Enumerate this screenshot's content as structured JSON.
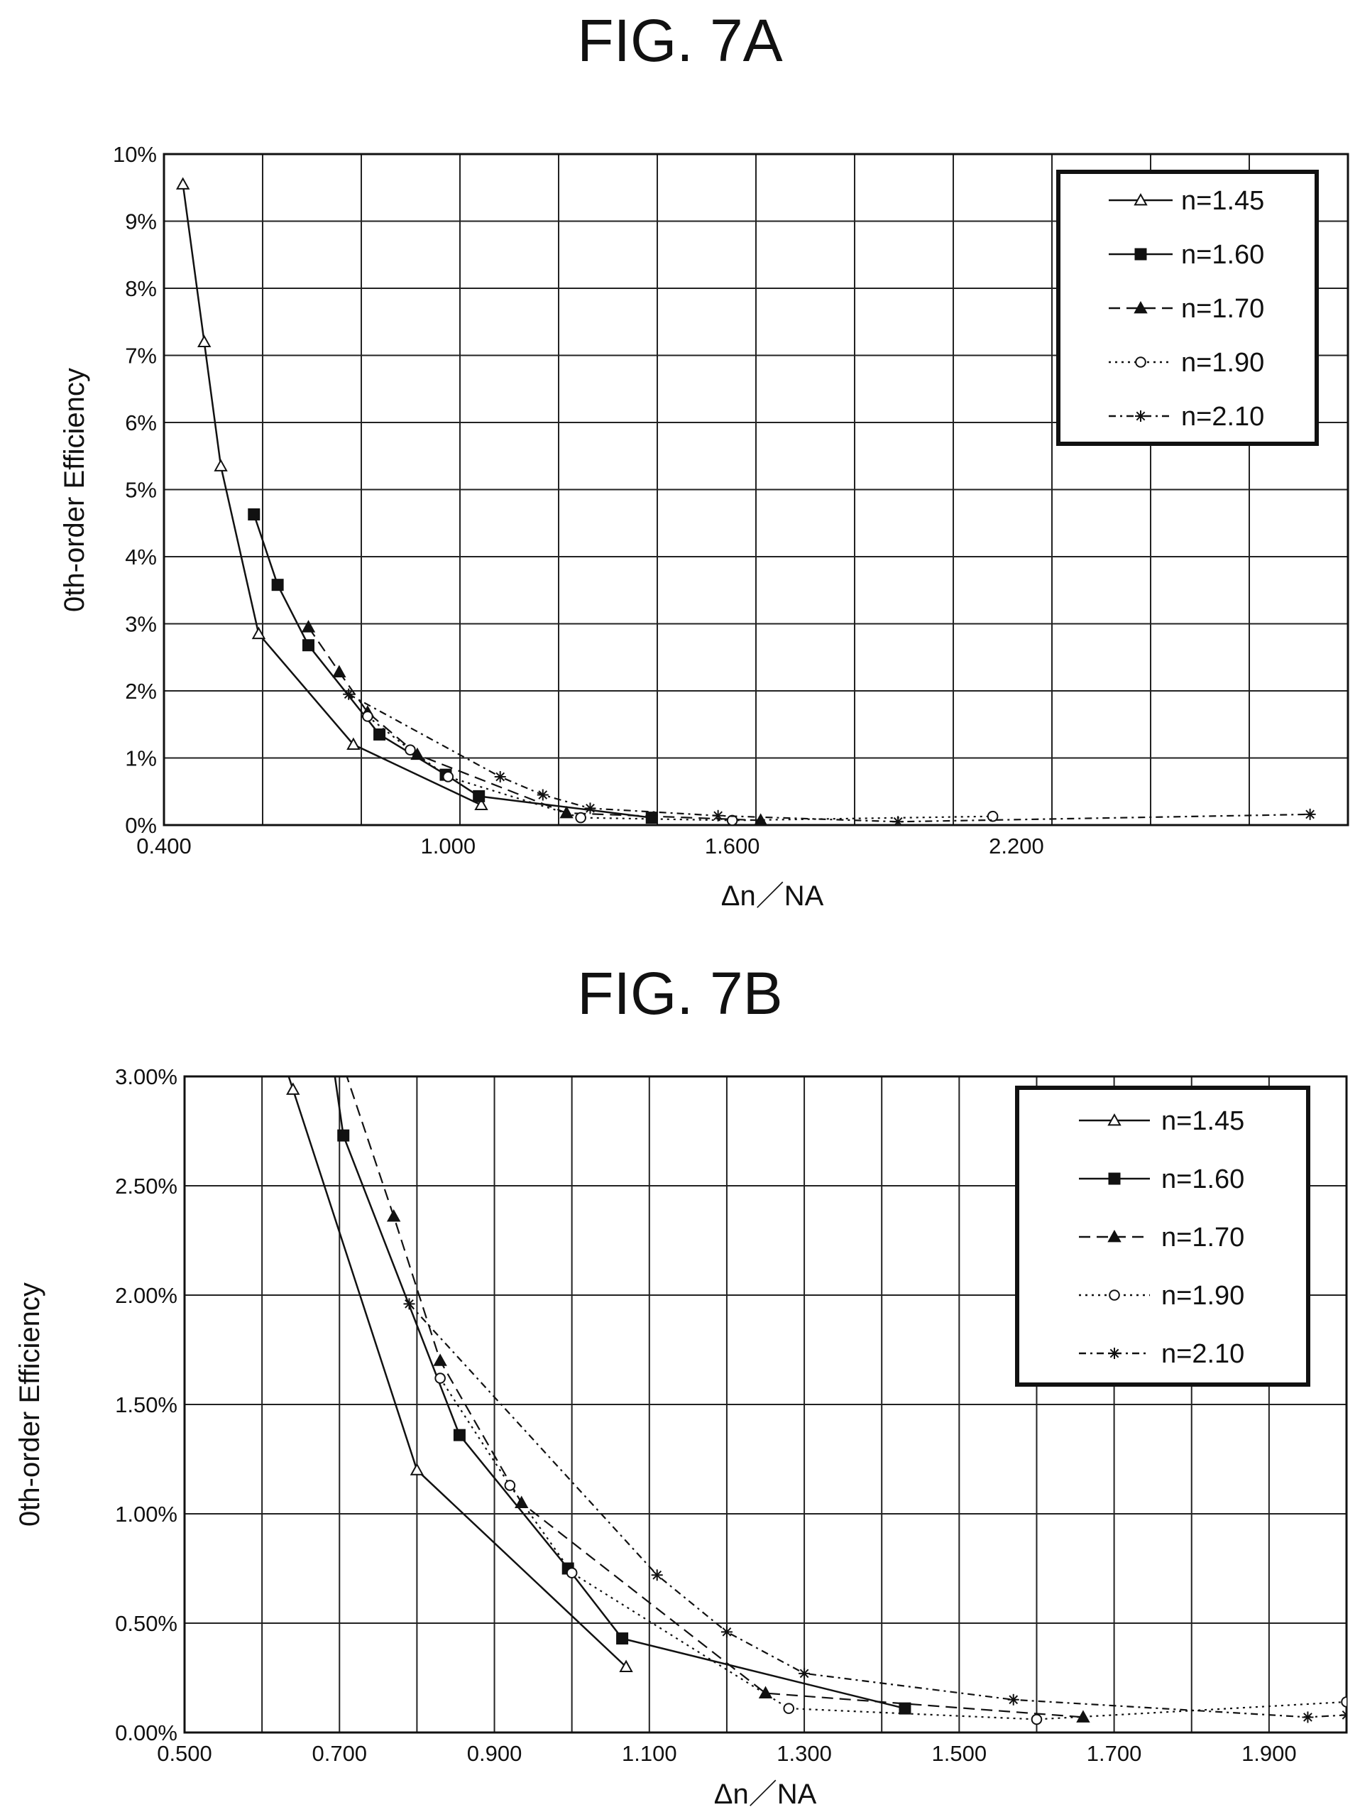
{
  "figures": [
    {
      "title": "FIG. 7A",
      "chart_data": {
        "type": "line",
        "title": "FIG. 7A",
        "xlabel": "Δn／NA",
        "ylabel": "0th-order Efficiency",
        "xlim": [
          0.4,
          2.9
        ],
        "ylim": [
          0,
          0.1
        ],
        "x_ticks": [
          0.4,
          1.0,
          1.6,
          2.2
        ],
        "x_tick_labels": [
          "0.400",
          "1.000",
          "1.600",
          "2.200"
        ],
        "y_ticks": [
          0,
          0.01,
          0.02,
          0.03,
          0.04,
          0.05,
          0.06,
          0.07,
          0.08,
          0.09,
          0.1
        ],
        "y_tick_labels": [
          "0%",
          "1%",
          "2%",
          "3%",
          "4%",
          "5%",
          "6%",
          "7%",
          "8%",
          "9%",
          "10%"
        ],
        "grid": true,
        "legend_position": "top-right",
        "series": [
          {
            "name": "n=1.45",
            "marker": "triangle-open",
            "dash": "solid",
            "points": [
              [
                0.44,
                0.0955
              ],
              [
                0.485,
                0.072
              ],
              [
                0.52,
                0.0535
              ],
              [
                0.6,
                0.0285
              ],
              [
                0.8,
                0.012
              ],
              [
                1.07,
                0.003
              ]
            ]
          },
          {
            "name": "n=1.60",
            "marker": "square",
            "dash": "solid",
            "points": [
              [
                0.59,
                0.0463
              ],
              [
                0.64,
                0.0358
              ],
              [
                0.705,
                0.0268
              ],
              [
                0.855,
                0.0135
              ],
              [
                0.995,
                0.0075
              ],
              [
                1.065,
                0.0043
              ],
              [
                1.43,
                0.0011
              ]
            ]
          },
          {
            "name": "n=1.70",
            "marker": "triangle",
            "dash": "dashed",
            "points": [
              [
                0.705,
                0.0295
              ],
              [
                0.77,
                0.0228
              ],
              [
                0.83,
                0.0168
              ],
              [
                0.935,
                0.0105
              ],
              [
                1.25,
                0.0018
              ],
              [
                1.66,
                0.0007
              ]
            ]
          },
          {
            "name": "n=1.90",
            "marker": "circle-open",
            "dash": "dotted",
            "points": [
              [
                0.83,
                0.0162
              ],
              [
                0.92,
                0.0112
              ],
              [
                1.0,
                0.0072
              ],
              [
                1.28,
                0.0011
              ],
              [
                1.6,
                0.0007
              ],
              [
                2.15,
                0.0013
              ]
            ]
          },
          {
            "name": "n=2.10",
            "marker": "asterisk",
            "dash": "dashdot",
            "points": [
              [
                0.79,
                0.0195
              ],
              [
                1.11,
                0.0072
              ],
              [
                1.2,
                0.0045
              ],
              [
                1.3,
                0.0025
              ],
              [
                1.57,
                0.0014
              ],
              [
                1.95,
                0.0005
              ],
              [
                2.82,
                0.0016
              ]
            ]
          }
        ]
      }
    },
    {
      "title": "FIG. 7B",
      "chart_data": {
        "type": "line",
        "title": "FIG. 7B",
        "xlabel": "Δn／NA",
        "ylabel": "0th-order Efficiency",
        "xlim": [
          0.5,
          2.0
        ],
        "ylim": [
          0,
          0.03
        ],
        "x_ticks": [
          0.5,
          0.7,
          0.9,
          1.1,
          1.3,
          1.5,
          1.7,
          1.9
        ],
        "x_tick_labels": [
          "0.500",
          "0.700",
          "0.900",
          "1.100",
          "1.300",
          "1.500",
          "1.700",
          "1.900"
        ],
        "y_ticks": [
          0,
          0.005,
          0.01,
          0.015,
          0.02,
          0.025,
          0.03
        ],
        "y_tick_labels": [
          "0.00%",
          "0.50%",
          "1.00%",
          "1.50%",
          "2.00%",
          "2.50%",
          "3.00%"
        ],
        "grid": true,
        "legend_position": "top-right",
        "series": [
          {
            "name": "n=1.45",
            "marker": "triangle-open",
            "dash": "solid",
            "points": [
              [
                0.625,
                0.031
              ],
              [
                0.64,
                0.0294
              ],
              [
                0.8,
                0.012
              ],
              [
                1.07,
                0.003
              ]
            ]
          },
          {
            "name": "n=1.60",
            "marker": "square",
            "dash": "solid",
            "points": [
              [
                0.69,
                0.031
              ],
              [
                0.705,
                0.0273
              ],
              [
                0.855,
                0.0136
              ],
              [
                0.995,
                0.0075
              ],
              [
                1.065,
                0.0043
              ],
              [
                1.43,
                0.0011
              ]
            ]
          },
          {
            "name": "n=1.70",
            "marker": "triangle",
            "dash": "dashed",
            "points": [
              [
                0.7,
                0.031
              ],
              [
                0.77,
                0.0236
              ],
              [
                0.83,
                0.017
              ],
              [
                0.935,
                0.0105
              ],
              [
                1.25,
                0.0018
              ],
              [
                1.66,
                0.0007
              ]
            ]
          },
          {
            "name": "n=1.90",
            "marker": "circle-open",
            "dash": "dotted",
            "points": [
              [
                0.83,
                0.0162
              ],
              [
                0.92,
                0.0113
              ],
              [
                1.0,
                0.0073
              ],
              [
                1.28,
                0.0011
              ],
              [
                1.6,
                0.0006
              ],
              [
                2.0,
                0.0014
              ]
            ]
          },
          {
            "name": "n=2.10",
            "marker": "asterisk",
            "dash": "dashdot",
            "points": [
              [
                0.79,
                0.0196
              ],
              [
                1.11,
                0.0072
              ],
              [
                1.2,
                0.0046
              ],
              [
                1.3,
                0.0027
              ],
              [
                1.57,
                0.0015
              ],
              [
                1.95,
                0.0007
              ],
              [
                2.0,
                0.0008
              ]
            ]
          }
        ]
      }
    }
  ]
}
